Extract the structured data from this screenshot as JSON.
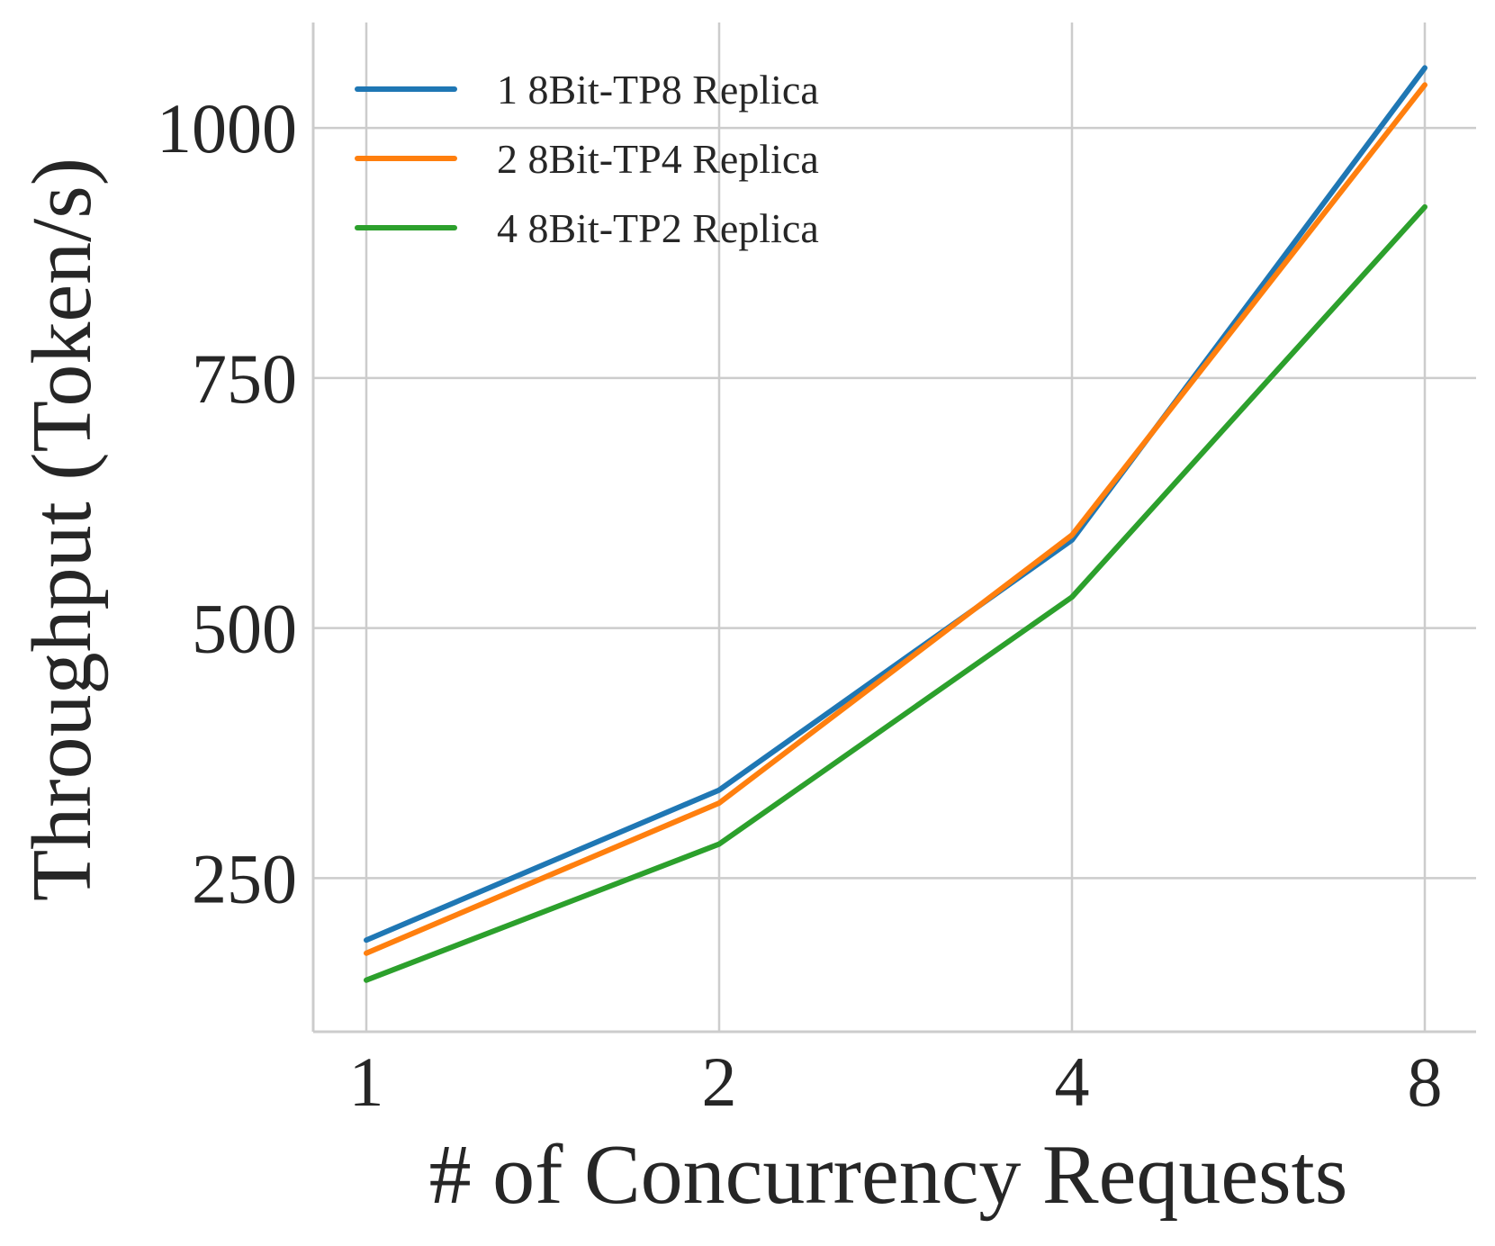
{
  "chart_data": {
    "type": "line",
    "xlabel": "# of Concurrency Requests",
    "ylabel": "Throughput (Token/s)",
    "x": [
      1,
      2,
      4,
      8
    ],
    "x_ticks": [
      "1",
      "2",
      "4",
      "8"
    ],
    "x_scale": "log2",
    "y_ticks": [
      "250",
      "500",
      "750",
      "1000"
    ],
    "ylim": [
      100,
      1100
    ],
    "grid": true,
    "legend_position": "upper-left",
    "series": [
      {
        "name": "1 8Bit-TP8 Replica",
        "color": "#1f77b4",
        "values": [
          188,
          338,
          588,
          1060
        ]
      },
      {
        "name": "2 8Bit-TP4 Replica",
        "color": "#ff7f0e",
        "values": [
          175,
          325,
          593,
          1043
        ]
      },
      {
        "name": "4 8Bit-TP2 Replica",
        "color": "#2ca02c",
        "values": [
          148,
          284,
          531,
          921
        ]
      }
    ]
  }
}
